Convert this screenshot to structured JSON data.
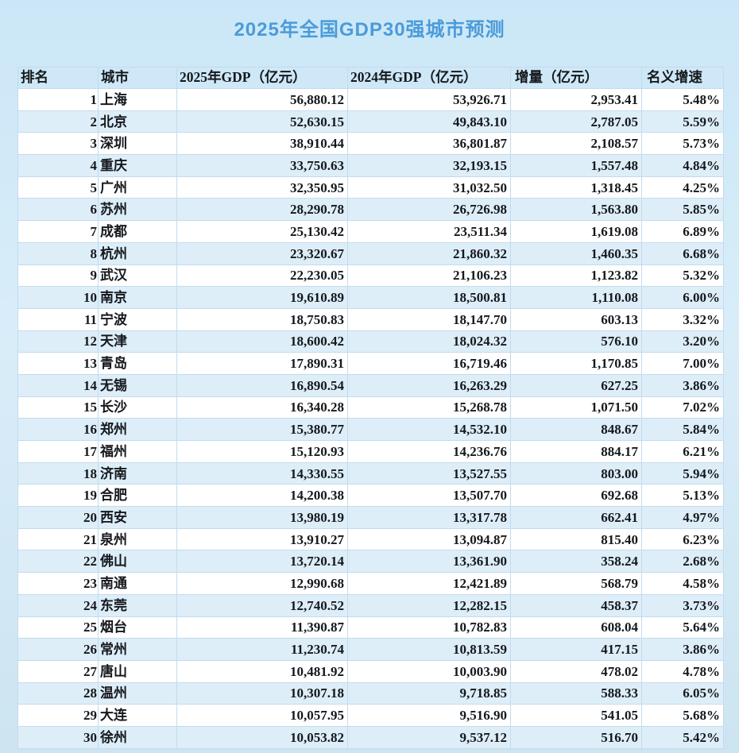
{
  "title": "2025年全国GDP30强城市预测",
  "colors": {
    "title_blue": "#4b9bd9",
    "page_bg_top": "#cbe7f7",
    "page_bg_mid": "#d9edf9",
    "page_bg_bottom": "#cde4f1",
    "row_stripe": "#ddeef9",
    "row_white": "#ffffff",
    "cell_border": "#c3dbec",
    "text": "#15181c"
  },
  "chart_data": {
    "type": "table",
    "title": "2025年全国GDP30强城市预测",
    "columns": [
      "排名",
      "城市",
      "2025年GDP（亿元）",
      "2024年GDP（亿元）",
      "增量（亿元）",
      "名义增速"
    ],
    "rows": [
      [
        "1",
        "上海",
        "56,880.12",
        "53,926.71",
        "2,953.41",
        "5.48%"
      ],
      [
        "2",
        "北京",
        "52,630.15",
        "49,843.10",
        "2,787.05",
        "5.59%"
      ],
      [
        "3",
        "深圳",
        "38,910.44",
        "36,801.87",
        "2,108.57",
        "5.73%"
      ],
      [
        "4",
        "重庆",
        "33,750.63",
        "32,193.15",
        "1,557.48",
        "4.84%"
      ],
      [
        "5",
        "广州",
        "32,350.95",
        "31,032.50",
        "1,318.45",
        "4.25%"
      ],
      [
        "6",
        "苏州",
        "28,290.78",
        "26,726.98",
        "1,563.80",
        "5.85%"
      ],
      [
        "7",
        "成都",
        "25,130.42",
        "23,511.34",
        "1,619.08",
        "6.89%"
      ],
      [
        "8",
        "杭州",
        "23,320.67",
        "21,860.32",
        "1,460.35",
        "6.68%"
      ],
      [
        "9",
        "武汉",
        "22,230.05",
        "21,106.23",
        "1,123.82",
        "5.32%"
      ],
      [
        "10",
        "南京",
        "19,610.89",
        "18,500.81",
        "1,110.08",
        "6.00%"
      ],
      [
        "11",
        "宁波",
        "18,750.83",
        "18,147.70",
        "603.13",
        "3.32%"
      ],
      [
        "12",
        "天津",
        "18,600.42",
        "18,024.32",
        "576.10",
        "3.20%"
      ],
      [
        "13",
        "青岛",
        "17,890.31",
        "16,719.46",
        "1,170.85",
        "7.00%"
      ],
      [
        "14",
        "无锡",
        "16,890.54",
        "16,263.29",
        "627.25",
        "3.86%"
      ],
      [
        "15",
        "长沙",
        "16,340.28",
        "15,268.78",
        "1,071.50",
        "7.02%"
      ],
      [
        "16",
        "郑州",
        "15,380.77",
        "14,532.10",
        "848.67",
        "5.84%"
      ],
      [
        "17",
        "福州",
        "15,120.93",
        "14,236.76",
        "884.17",
        "6.21%"
      ],
      [
        "18",
        "济南",
        "14,330.55",
        "13,527.55",
        "803.00",
        "5.94%"
      ],
      [
        "19",
        "合肥",
        "14,200.38",
        "13,507.70",
        "692.68",
        "5.13%"
      ],
      [
        "20",
        "西安",
        "13,980.19",
        "13,317.78",
        "662.41",
        "4.97%"
      ],
      [
        "21",
        "泉州",
        "13,910.27",
        "13,094.87",
        "815.40",
        "6.23%"
      ],
      [
        "22",
        "佛山",
        "13,720.14",
        "13,361.90",
        "358.24",
        "2.68%"
      ],
      [
        "23",
        "南通",
        "12,990.68",
        "12,421.89",
        "568.79",
        "4.58%"
      ],
      [
        "24",
        "东莞",
        "12,740.52",
        "12,282.15",
        "458.37",
        "3.73%"
      ],
      [
        "25",
        "烟台",
        "11,390.87",
        "10,782.83",
        "608.04",
        "5.64%"
      ],
      [
        "26",
        "常州",
        "11,230.74",
        "10,813.59",
        "417.15",
        "3.86%"
      ],
      [
        "27",
        "唐山",
        "10,481.92",
        "10,003.90",
        "478.02",
        "4.78%"
      ],
      [
        "28",
        "温州",
        "10,307.18",
        "9,718.85",
        "588.33",
        "6.05%"
      ],
      [
        "29",
        "大连",
        "10,057.95",
        "9,516.90",
        "541.05",
        "5.68%"
      ],
      [
        "30",
        "徐州",
        "10,053.82",
        "9,537.12",
        "516.70",
        "5.42%"
      ]
    ]
  }
}
